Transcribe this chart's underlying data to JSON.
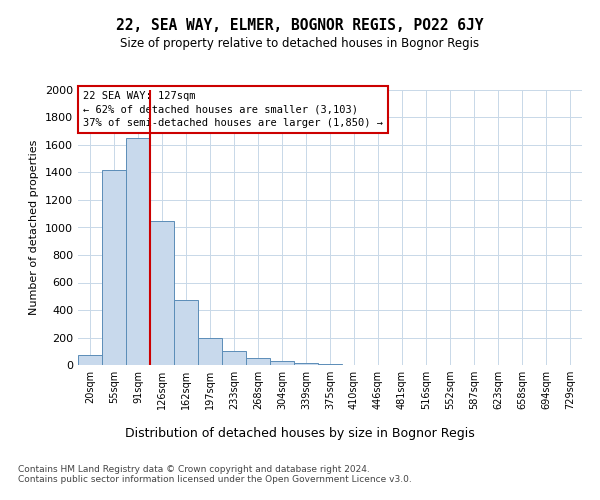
{
  "title1": "22, SEA WAY, ELMER, BOGNOR REGIS, PO22 6JY",
  "title2": "Size of property relative to detached houses in Bognor Regis",
  "xlabel": "Distribution of detached houses by size in Bognor Regis",
  "ylabel": "Number of detached properties",
  "categories": [
    "20sqm",
    "55sqm",
    "91sqm",
    "126sqm",
    "162sqm",
    "197sqm",
    "233sqm",
    "268sqm",
    "304sqm",
    "339sqm",
    "375sqm",
    "410sqm",
    "446sqm",
    "481sqm",
    "516sqm",
    "552sqm",
    "587sqm",
    "623sqm",
    "658sqm",
    "694sqm",
    "729sqm"
  ],
  "values": [
    75,
    1420,
    1650,
    1050,
    470,
    200,
    100,
    50,
    30,
    15,
    10,
    0,
    0,
    0,
    0,
    0,
    0,
    0,
    0,
    0,
    0
  ],
  "bar_color": "#c8d9ec",
  "bar_edge_color": "#5b8db8",
  "vline_color": "#cc0000",
  "vline_pos": 2.5,
  "annotation_text": "22 SEA WAY: 127sqm\n← 62% of detached houses are smaller (3,103)\n37% of semi-detached houses are larger (1,850) →",
  "annotation_box_color": "white",
  "annotation_box_edge_color": "#cc0000",
  "footer": "Contains HM Land Registry data © Crown copyright and database right 2024.\nContains public sector information licensed under the Open Government Licence v3.0.",
  "bg_color": "#ffffff",
  "plot_bg_color": "#ffffff",
  "grid_color": "#c8d8e8",
  "yticks": [
    0,
    200,
    400,
    600,
    800,
    1000,
    1200,
    1400,
    1600,
    1800,
    2000
  ],
  "ylim": [
    0,
    2000
  ]
}
